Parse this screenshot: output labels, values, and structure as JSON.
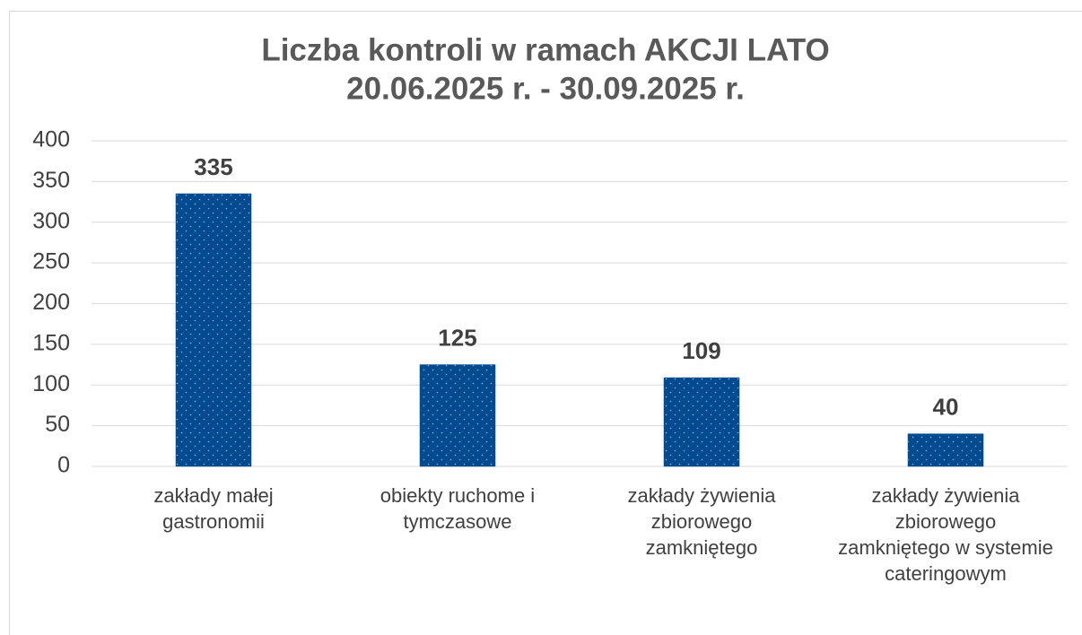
{
  "chart_data": {
    "type": "bar",
    "title": [
      "Liczba kontroli w ramach AKCJI LATO",
      "20.06.2025 r. - 30.09.2025 r."
    ],
    "categories": [
      "zakłady małej gastronomii",
      "obiekty ruchome i tymczasowe",
      "zakłady żywienia zbiorowego zamkniętego",
      "zakłady żywienia zbiorowego zamkniętego w systemie cateringowym"
    ],
    "values": [
      335,
      125,
      109,
      40
    ],
    "color": "#004a8f",
    "ylim": [
      0,
      400
    ],
    "yticks": [
      0,
      50,
      100,
      150,
      200,
      250,
      300,
      350,
      400
    ],
    "grid": true
  }
}
